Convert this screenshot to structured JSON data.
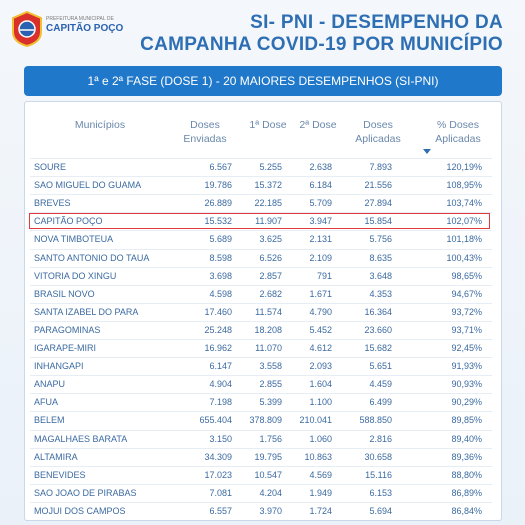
{
  "header": {
    "logo": {
      "line1": "PREFEITURA MUNICIPAL DE",
      "line2": "CAPITÃO POÇO"
    },
    "title": [
      "SI- PNI - DESEMPENHO DA",
      "CAMPANHA COVID-19 POR MUNICÍPIO"
    ]
  },
  "banner": "1ª e 2ª FASE (DOSE 1) - 20 MAIORES DESEMPENHOS (SI-PNI)",
  "table": {
    "columns": [
      "Municípios",
      "Doses Enviadas",
      "1ª Dose",
      "2ª Dose",
      "Doses Aplicadas",
      "% Doses Aplicadas"
    ],
    "rows": [
      [
        "SOURE",
        "6.567",
        "5.255",
        "2.638",
        "7.893",
        "120,19%"
      ],
      [
        "SAO MIGUEL DO GUAMA",
        "19.786",
        "15.372",
        "6.184",
        "21.556",
        "108,95%"
      ],
      [
        "BREVES",
        "26.889",
        "22.185",
        "5.709",
        "27.894",
        "103,74%"
      ],
      [
        "CAPITÃO POÇO",
        "15.532",
        "11.907",
        "3.947",
        "15.854",
        "102,07%"
      ],
      [
        "NOVA TIMBOTEUA",
        "5.689",
        "3.625",
        "2.131",
        "5.756",
        "101,18%"
      ],
      [
        "SANTO ANTONIO DO TAUA",
        "8.598",
        "6.526",
        "2.109",
        "8.635",
        "100,43%"
      ],
      [
        "VITORIA DO XINGU",
        "3.698",
        "2.857",
        "791",
        "3.648",
        "98,65%"
      ],
      [
        "BRASIL NOVO",
        "4.598",
        "2.682",
        "1.671",
        "4.353",
        "94,67%"
      ],
      [
        "SANTA IZABEL DO PARA",
        "17.460",
        "11.574",
        "4.790",
        "16.364",
        "93,72%"
      ],
      [
        "PARAGOMINAS",
        "25.248",
        "18.208",
        "5.452",
        "23.660",
        "93,71%"
      ],
      [
        "IGARAPE-MIRI",
        "16.962",
        "11.070",
        "4.612",
        "15.682",
        "92,45%"
      ],
      [
        "INHANGAPI",
        "6.147",
        "3.558",
        "2.093",
        "5.651",
        "91,93%"
      ],
      [
        "ANAPU",
        "4.904",
        "2.855",
        "1.604",
        "4.459",
        "90,93%"
      ],
      [
        "AFUA",
        "7.198",
        "5.399",
        "1.100",
        "6.499",
        "90,29%"
      ],
      [
        "BELEM",
        "655.404",
        "378.809",
        "210.041",
        "588.850",
        "89,85%"
      ],
      [
        "MAGALHAES BARATA",
        "3.150",
        "1.756",
        "1.060",
        "2.816",
        "89,40%"
      ],
      [
        "ALTAMIRA",
        "34.309",
        "19.795",
        "10.863",
        "30.658",
        "89,36%"
      ],
      [
        "BENEVIDES",
        "17.023",
        "10.547",
        "4.569",
        "15.116",
        "88,80%"
      ],
      [
        "SAO JOAO DE PIRABAS",
        "7.081",
        "4.204",
        "1.949",
        "6.153",
        "86,89%"
      ],
      [
        "MOJUI DOS CAMPOS",
        "6.557",
        "3.970",
        "1.724",
        "5.694",
        "86,84%"
      ]
    ]
  }
}
